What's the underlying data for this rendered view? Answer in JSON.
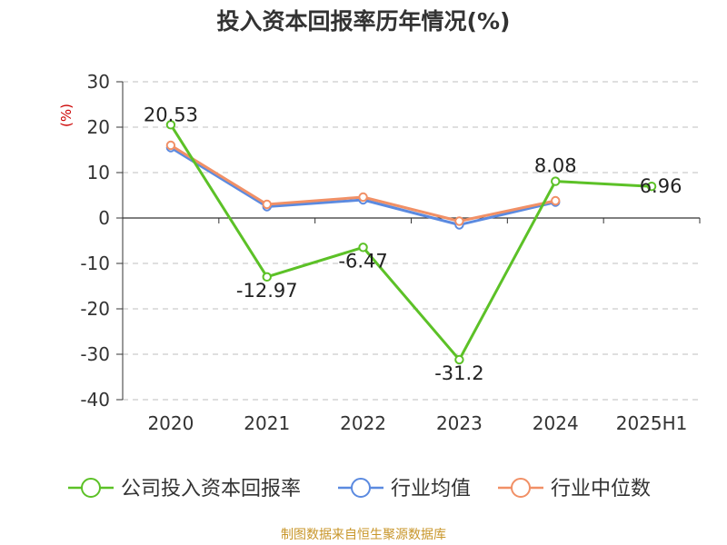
{
  "title": "投入资本回报率历年情况(%)",
  "source": "制图数据来自恒生聚源数据库",
  "chart_data": {
    "type": "line",
    "title": "投入资本回报率历年情况(%)",
    "ylabel": "(%)",
    "categories": [
      "2020",
      "2021",
      "2022",
      "2023",
      "2024",
      "2025H1"
    ],
    "ylim": [
      -40,
      30
    ],
    "yticks": [
      30,
      20,
      10,
      0,
      -10,
      -20,
      -30,
      -40
    ],
    "ytick_labels": [
      "30",
      "20",
      "10",
      "0",
      "-10",
      "-20",
      "-30",
      "-40"
    ],
    "grid": true,
    "legend_position": "bottom",
    "series": [
      {
        "name": "公司投入资本回报率",
        "color": "#5cc127",
        "values": [
          20.53,
          -12.97,
          -6.47,
          -31.2,
          8.08,
          6.96
        ],
        "data_labels": [
          "20.53",
          "-12.97",
          "-6.47",
          "-31.2",
          "8.08",
          "6.96"
        ]
      },
      {
        "name": "行业均值",
        "color": "#5b8ae0",
        "values": [
          15.5,
          2.5,
          4.0,
          -1.5,
          3.5,
          null
        ]
      },
      {
        "name": "行业中位数",
        "color": "#f19066",
        "values": [
          16.0,
          3.0,
          4.6,
          -0.7,
          3.8,
          null
        ]
      }
    ]
  }
}
